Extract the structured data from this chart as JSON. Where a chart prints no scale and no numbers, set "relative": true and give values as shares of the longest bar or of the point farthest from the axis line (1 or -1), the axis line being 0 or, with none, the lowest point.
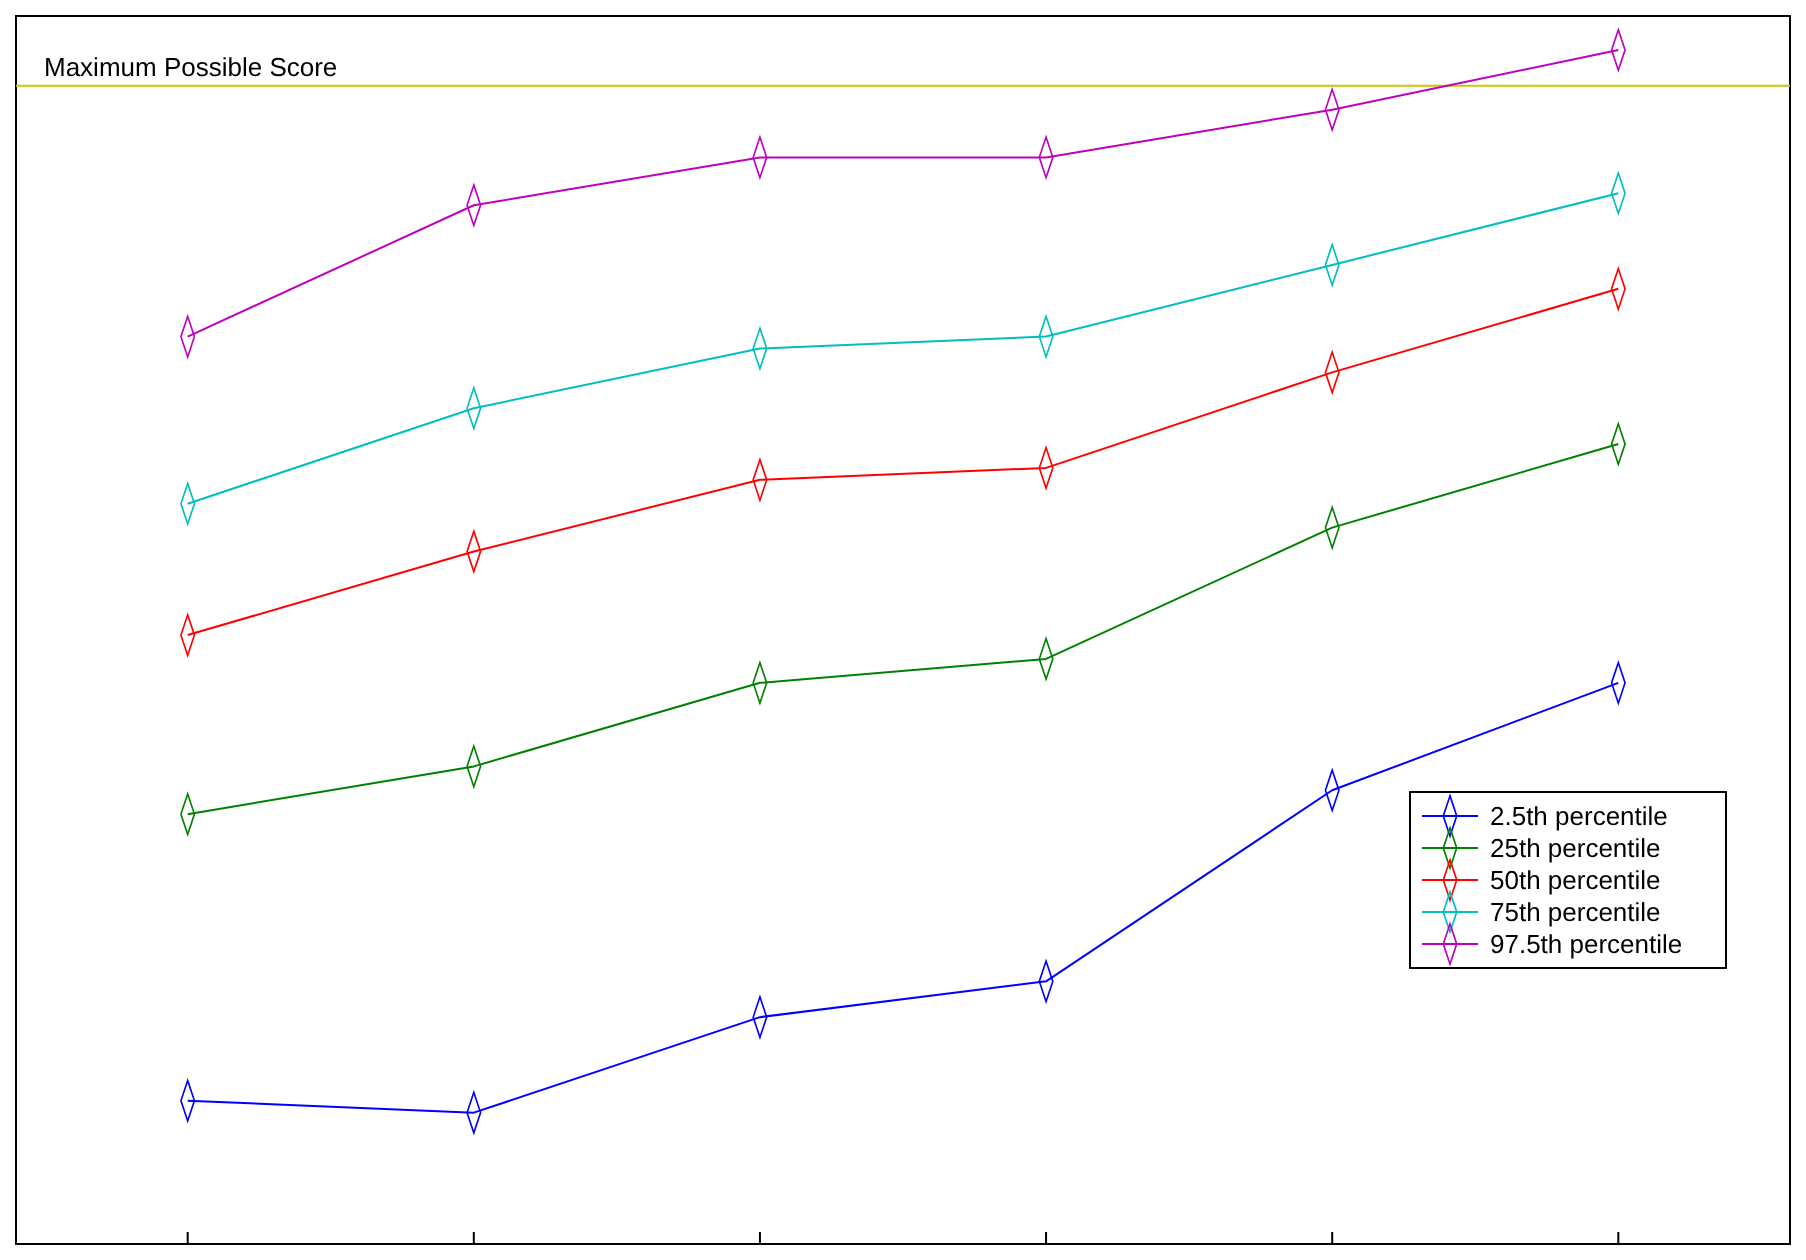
{
  "chart_data": {
    "type": "line",
    "relative": true,
    "categories": [
      null,
      null,
      null,
      null,
      null,
      null
    ],
    "marker": "diamond",
    "legend": "bottom right",
    "series": [
      {
        "name": "2.5th percentile",
        "color": "#0000ff",
        "values": [
          0.12,
          0.11,
          0.19,
          0.22,
          0.38,
          0.47
        ]
      },
      {
        "name": "25th percentile",
        "color": "#008000",
        "values": [
          0.36,
          0.4,
          0.47,
          0.49,
          0.6,
          0.67
        ]
      },
      {
        "name": "50th percentile",
        "color": "#ff0000",
        "values": [
          0.51,
          0.58,
          0.64,
          0.65,
          0.73,
          0.8
        ]
      },
      {
        "name": "75th percentile",
        "color": "#00bfbf",
        "values": [
          0.62,
          0.7,
          0.75,
          0.76,
          0.82,
          0.88
        ]
      },
      {
        "name": "97.5th percentile",
        "color": "#bf00bf",
        "values": [
          0.76,
          0.87,
          0.91,
          0.91,
          0.95,
          1
        ]
      }
    ],
    "ref_lines": [
      {
        "axis": "y",
        "value": 0.97,
        "label": "Maximum Possible Score",
        "color": "#c8c800"
      }
    ]
  }
}
